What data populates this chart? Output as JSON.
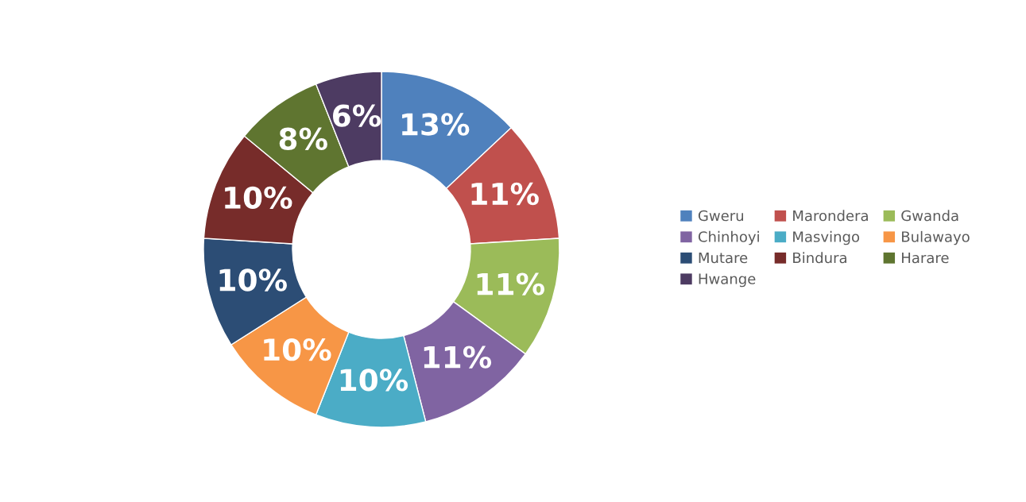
{
  "chart_data": {
    "type": "donut",
    "categories": [
      "Gweru",
      "Marondera",
      "Gwanda",
      "Chinhoyi",
      "Masvingo",
      "Bulawayo",
      "Mutare",
      "Bindura",
      "Harare",
      "Hwange"
    ],
    "values": [
      13,
      11,
      11,
      11,
      10,
      10,
      10,
      10,
      8,
      6
    ],
    "value_labels": [
      "13%",
      "11%",
      "11%",
      "11%",
      "10%",
      "10%",
      "10%",
      "10%",
      "8%",
      "6%"
    ],
    "colors": [
      "#4f81bd",
      "#c0504d",
      "#9bbb59",
      "#8064a2",
      "#4bacc6",
      "#f79646",
      "#2c4d75",
      "#772c2a",
      "#5f7530",
      "#4d3b62"
    ],
    "legend": "right"
  }
}
